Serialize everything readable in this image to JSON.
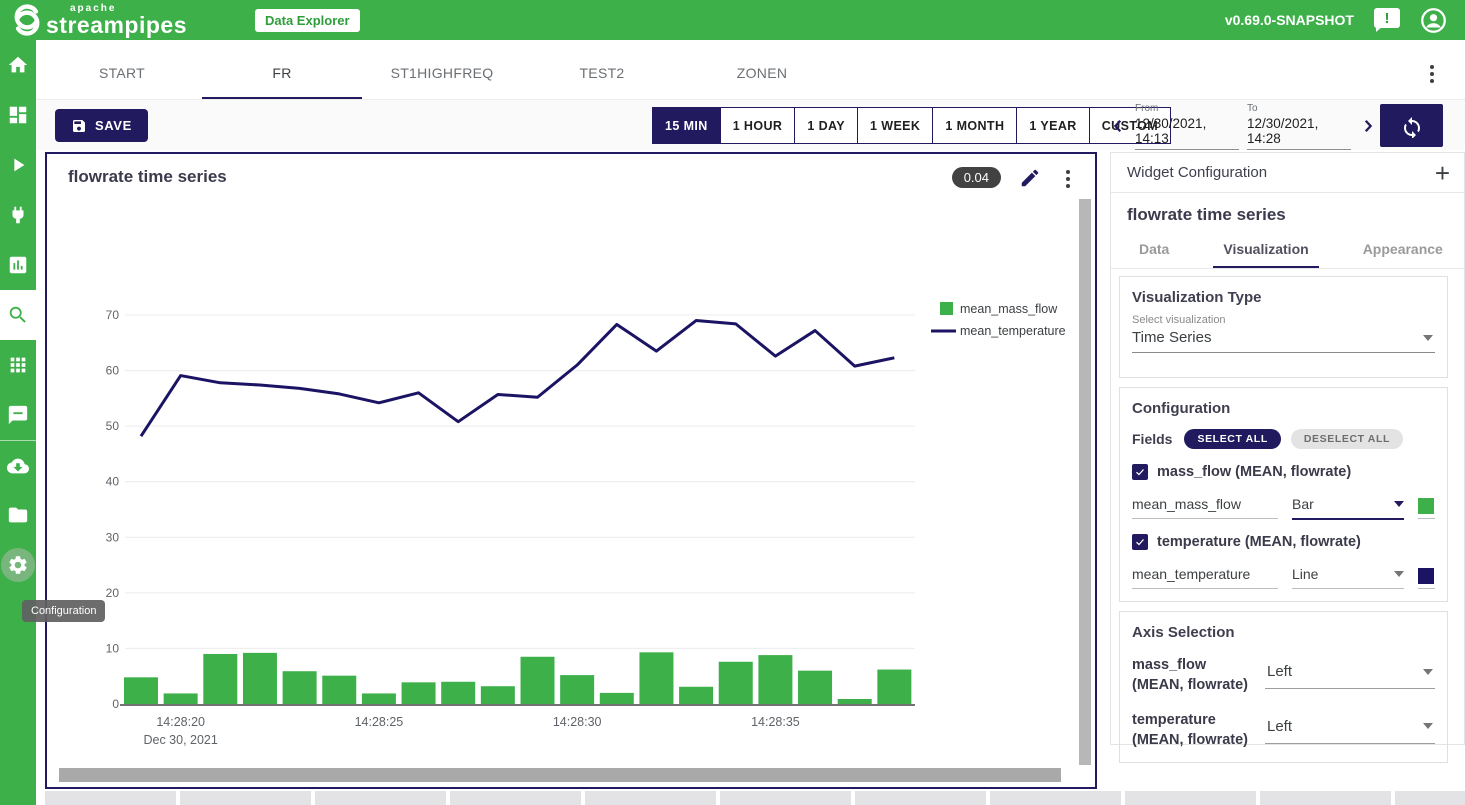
{
  "app": {
    "logo_top": "apache",
    "logo_name": "streampipes",
    "badge": "Data Explorer",
    "version": "v0.69.0-SNAPSHOT"
  },
  "sidebar": {
    "items": [
      {
        "name": "home"
      },
      {
        "name": "pipeline-editor"
      },
      {
        "name": "pipelines"
      },
      {
        "name": "connect"
      },
      {
        "name": "dashboard"
      },
      {
        "name": "data-explorer",
        "active": true
      },
      {
        "name": "apps"
      },
      {
        "name": "notifications"
      },
      {
        "name": "install-elements"
      },
      {
        "name": "files"
      },
      {
        "name": "configuration",
        "hovered": true
      }
    ],
    "tooltip": "Configuration"
  },
  "tabs": {
    "items": [
      "START",
      "FR",
      "ST1HIGHFREQ",
      "TEST2",
      "ZONEN"
    ],
    "active": "FR"
  },
  "toolbar": {
    "save_label": "SAVE",
    "ranges": [
      "15 MIN",
      "1 HOUR",
      "1 DAY",
      "1 WEEK",
      "1 MONTH",
      "1 YEAR",
      "CUSTOM"
    ],
    "active_range": "15 MIN",
    "from_label": "From",
    "from_value": "12/30/2021, 14:13",
    "to_label": "To",
    "to_value": "12/30/2021, 14:28"
  },
  "widget": {
    "title": "flowrate time series",
    "badge": "0.04"
  },
  "chart_data": {
    "type": "bar+line",
    "title": "flowrate time series",
    "x": [
      "14:28:19",
      "14:28:20",
      "14:28:21",
      "14:28:22",
      "14:28:23",
      "14:28:24",
      "14:28:25",
      "14:28:26",
      "14:28:27",
      "14:28:28",
      "14:28:29",
      "14:28:30",
      "14:28:31",
      "14:28:32",
      "14:28:33",
      "14:28:34",
      "14:28:35",
      "14:28:36",
      "14:28:37",
      "14:28:38"
    ],
    "series": [
      {
        "name": "mean_mass_flow",
        "type": "bar",
        "color": "#3eb04a",
        "values": [
          4.8,
          1.9,
          9.0,
          9.2,
          5.9,
          5.1,
          1.9,
          3.9,
          4.0,
          3.2,
          8.5,
          5.2,
          2.0,
          9.3,
          3.1,
          7.6,
          8.8,
          6.0,
          0.9,
          6.2
        ]
      },
      {
        "name": "mean_temperature",
        "type": "line",
        "color": "#1b1464",
        "values": [
          48.2,
          59.1,
          57.8,
          57.4,
          56.8,
          55.8,
          54.2,
          56.0,
          50.8,
          55.7,
          55.2,
          61.0,
          68.3,
          63.5,
          69.0,
          68.4,
          62.6,
          67.2,
          60.8,
          62.3
        ]
      }
    ],
    "y_ticks": [
      0,
      10,
      20,
      30,
      40,
      50,
      60,
      70
    ],
    "ylim": [
      0,
      74
    ],
    "x_tick_indices": [
      1,
      6,
      11,
      16
    ],
    "x_tick_labels": [
      "14:28:20",
      "14:28:25",
      "14:28:30",
      "14:28:35"
    ],
    "x_date_annotation": "Dec 30, 2021",
    "grid": true,
    "legend_position": "right"
  },
  "panel": {
    "header": "Widget Configuration",
    "widget_title": "flowrate time series",
    "tabs": [
      "Data",
      "Visualization",
      "Appearance"
    ],
    "active_tab": "Visualization",
    "viz": {
      "title": "Visualization Type",
      "select_label": "Select visualization",
      "value": "Time Series"
    },
    "config": {
      "title": "Configuration",
      "fields_label": "Fields",
      "select_all": "SELECT ALL",
      "deselect_all": "DESELECT ALL",
      "fields": [
        {
          "label": "mass_flow (MEAN, flowrate)",
          "checked": true,
          "name": "mean_mass_flow",
          "display_type": "Bar",
          "color": "#3eb04a"
        },
        {
          "label": "temperature (MEAN, flowrate)",
          "checked": true,
          "name": "mean_temperature",
          "display_type": "Line",
          "color": "#1b1464"
        }
      ]
    },
    "axis": {
      "title": "Axis Selection",
      "options": [
        {
          "label": "mass_flow (MEAN, flowrate)",
          "value": "Left"
        },
        {
          "label": "temperature (MEAN, flowrate)",
          "value": "Left"
        }
      ]
    }
  },
  "colors": {
    "brand_green": "#3eb04a",
    "navy": "#221a5e",
    "bar_green": "#3eb04a",
    "line_navy": "#1b1464"
  }
}
